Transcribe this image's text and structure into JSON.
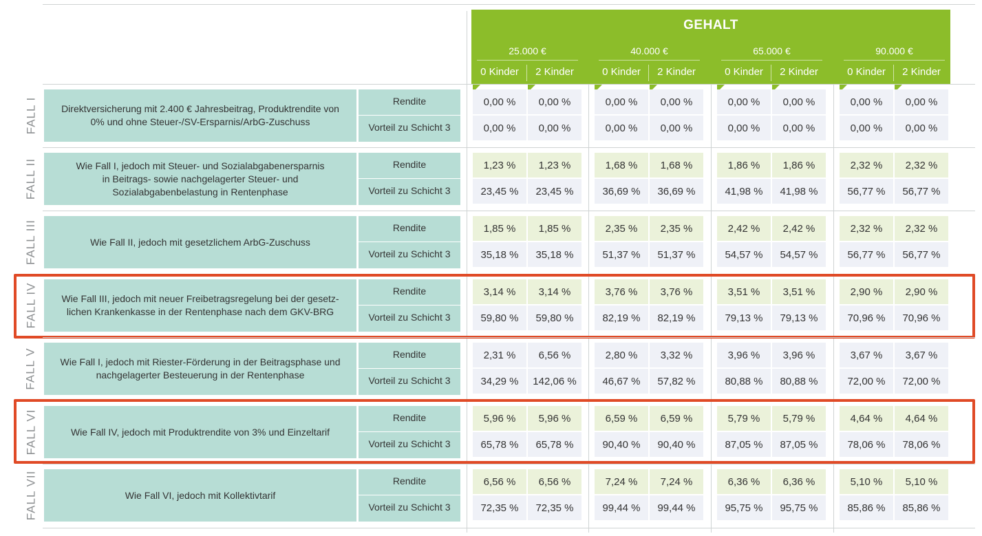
{
  "header": {
    "title": "GEHALT",
    "salaries": [
      "25.000 €",
      "40.000 €",
      "65.000 €",
      "90.000 €"
    ],
    "kids": [
      "0 Kinder",
      "2 Kinder"
    ]
  },
  "labels": {
    "rendite": "Rendite",
    "vorteil": "Vorteil zu Schicht 3"
  },
  "colors": {
    "header_green": "#8cbd2a",
    "desc_teal": "#b7ddd5",
    "rendite_bg": "#ebf2da",
    "vorteil_bg": "#eff1f7",
    "highlight": "#e04a26"
  },
  "rows": [
    {
      "fall": "FALL I",
      "desc": "Direktversicherung mit 2.400 € Jahresbeitrag, Produktrendite von\n0% und ohne Steuer-/SV-Ersparnis/ArbG-Zuschuss",
      "highlighted": false,
      "rendite": [
        "0,00 %",
        "0,00 %",
        "0,00 %",
        "0,00 %",
        "0,00 %",
        "0,00 %",
        "0,00 %",
        "0,00 %"
      ],
      "vorteil": [
        "0,00 %",
        "0,00 %",
        "0,00 %",
        "0,00 %",
        "0,00 %",
        "0,00 %",
        "0,00 %",
        "0,00 %"
      ],
      "rendite_style": "vort",
      "vorteil_style": "vort"
    },
    {
      "fall": "FALL II",
      "desc": "Wie Fall I, jedoch mit Steuer- und Sozialabgabenersparnis\nin Beitrags- sowie nachgelagerter Steuer- und\nSozialabgabenbelastung in Rentenphase",
      "highlighted": false,
      "rendite": [
        "1,23 %",
        "1,23 %",
        "1,68 %",
        "1,68 %",
        "1,86 %",
        "1,86 %",
        "2,32 %",
        "2,32 %"
      ],
      "vorteil": [
        "23,45 %",
        "23,45 %",
        "36,69 %",
        "36,69 %",
        "41,98 %",
        "41,98 %",
        "56,77 %",
        "56,77 %"
      ],
      "rendite_style": "rend",
      "vorteil_style": "vort"
    },
    {
      "fall": "FALL III",
      "desc": "Wie Fall II, jedoch mit gesetzlichem ArbG-Zuschuss",
      "highlighted": false,
      "rendite": [
        "1,85 %",
        "1,85 %",
        "2,35 %",
        "2,35 %",
        "2,42 %",
        "2,42 %",
        "2,32 %",
        "2,32 %"
      ],
      "vorteil": [
        "35,18 %",
        "35,18 %",
        "51,37 %",
        "51,37 %",
        "54,57 %",
        "54,57 %",
        "56,77 %",
        "56,77 %"
      ],
      "rendite_style": "rend",
      "vorteil_style": "vort"
    },
    {
      "fall": "FALL IV",
      "desc": "Wie Fall III, jedoch mit neuer Freibetragsregelung bei der gesetz-\nlichen Krankenkasse in der Rentenphase nach dem GKV-BRG",
      "highlighted": true,
      "rendite": [
        "3,14 %",
        "3,14 %",
        "3,76 %",
        "3,76 %",
        "3,51 %",
        "3,51 %",
        "2,90 %",
        "2,90 %"
      ],
      "vorteil": [
        "59,80 %",
        "59,80 %",
        "82,19 %",
        "82,19 %",
        "79,13 %",
        "79,13 %",
        "70,96 %",
        "70,96 %"
      ],
      "rendite_style": "rend",
      "vorteil_style": "vort"
    },
    {
      "fall": "FALL V",
      "desc": "Wie Fall I, jedoch mit Riester-Förderung in der Beitragsphase und\nnachgelagerter Besteuerung in der Rentenphase",
      "highlighted": false,
      "rendite": [
        "2,31 %",
        "6,56 %",
        "2,80 %",
        "3,32 %",
        "3,96 %",
        "3,96 %",
        "3,67 %",
        "3,67 %"
      ],
      "vorteil": [
        "34,29 %",
        "142,06 %",
        "46,67 %",
        "57,82 %",
        "80,88 %",
        "80,88 %",
        "72,00 %",
        "72,00 %"
      ],
      "rendite_style": "vort",
      "vorteil_style": "vort"
    },
    {
      "fall": "FALL VI",
      "desc": "Wie Fall IV, jedoch mit Produktrendite von 3% und Einzeltarif",
      "highlighted": true,
      "rendite": [
        "5,96 %",
        "5,96 %",
        "6,59 %",
        "6,59 %",
        "5,79 %",
        "5,79 %",
        "4,64 %",
        "4,64 %"
      ],
      "vorteil": [
        "65,78 %",
        "65,78 %",
        "90,40 %",
        "90,40 %",
        "87,05 %",
        "87,05 %",
        "78,06 %",
        "78,06 %"
      ],
      "rendite_style": "rend",
      "vorteil_style": "vort"
    },
    {
      "fall": "FALL VII",
      "desc": "Wie Fall VI, jedoch mit Kollektivtarif",
      "highlighted": false,
      "rendite": [
        "6,56 %",
        "6,56 %",
        "7,24 %",
        "7,24 %",
        "6,36 %",
        "6,36 %",
        "5,10 %",
        "5,10 %"
      ],
      "vorteil": [
        "72,35 %",
        "72,35 %",
        "99,44 %",
        "99,44 %",
        "95,75 %",
        "95,75 %",
        "85,86 %",
        "85,86 %"
      ],
      "rendite_style": "rend",
      "vorteil_style": "vort"
    }
  ]
}
